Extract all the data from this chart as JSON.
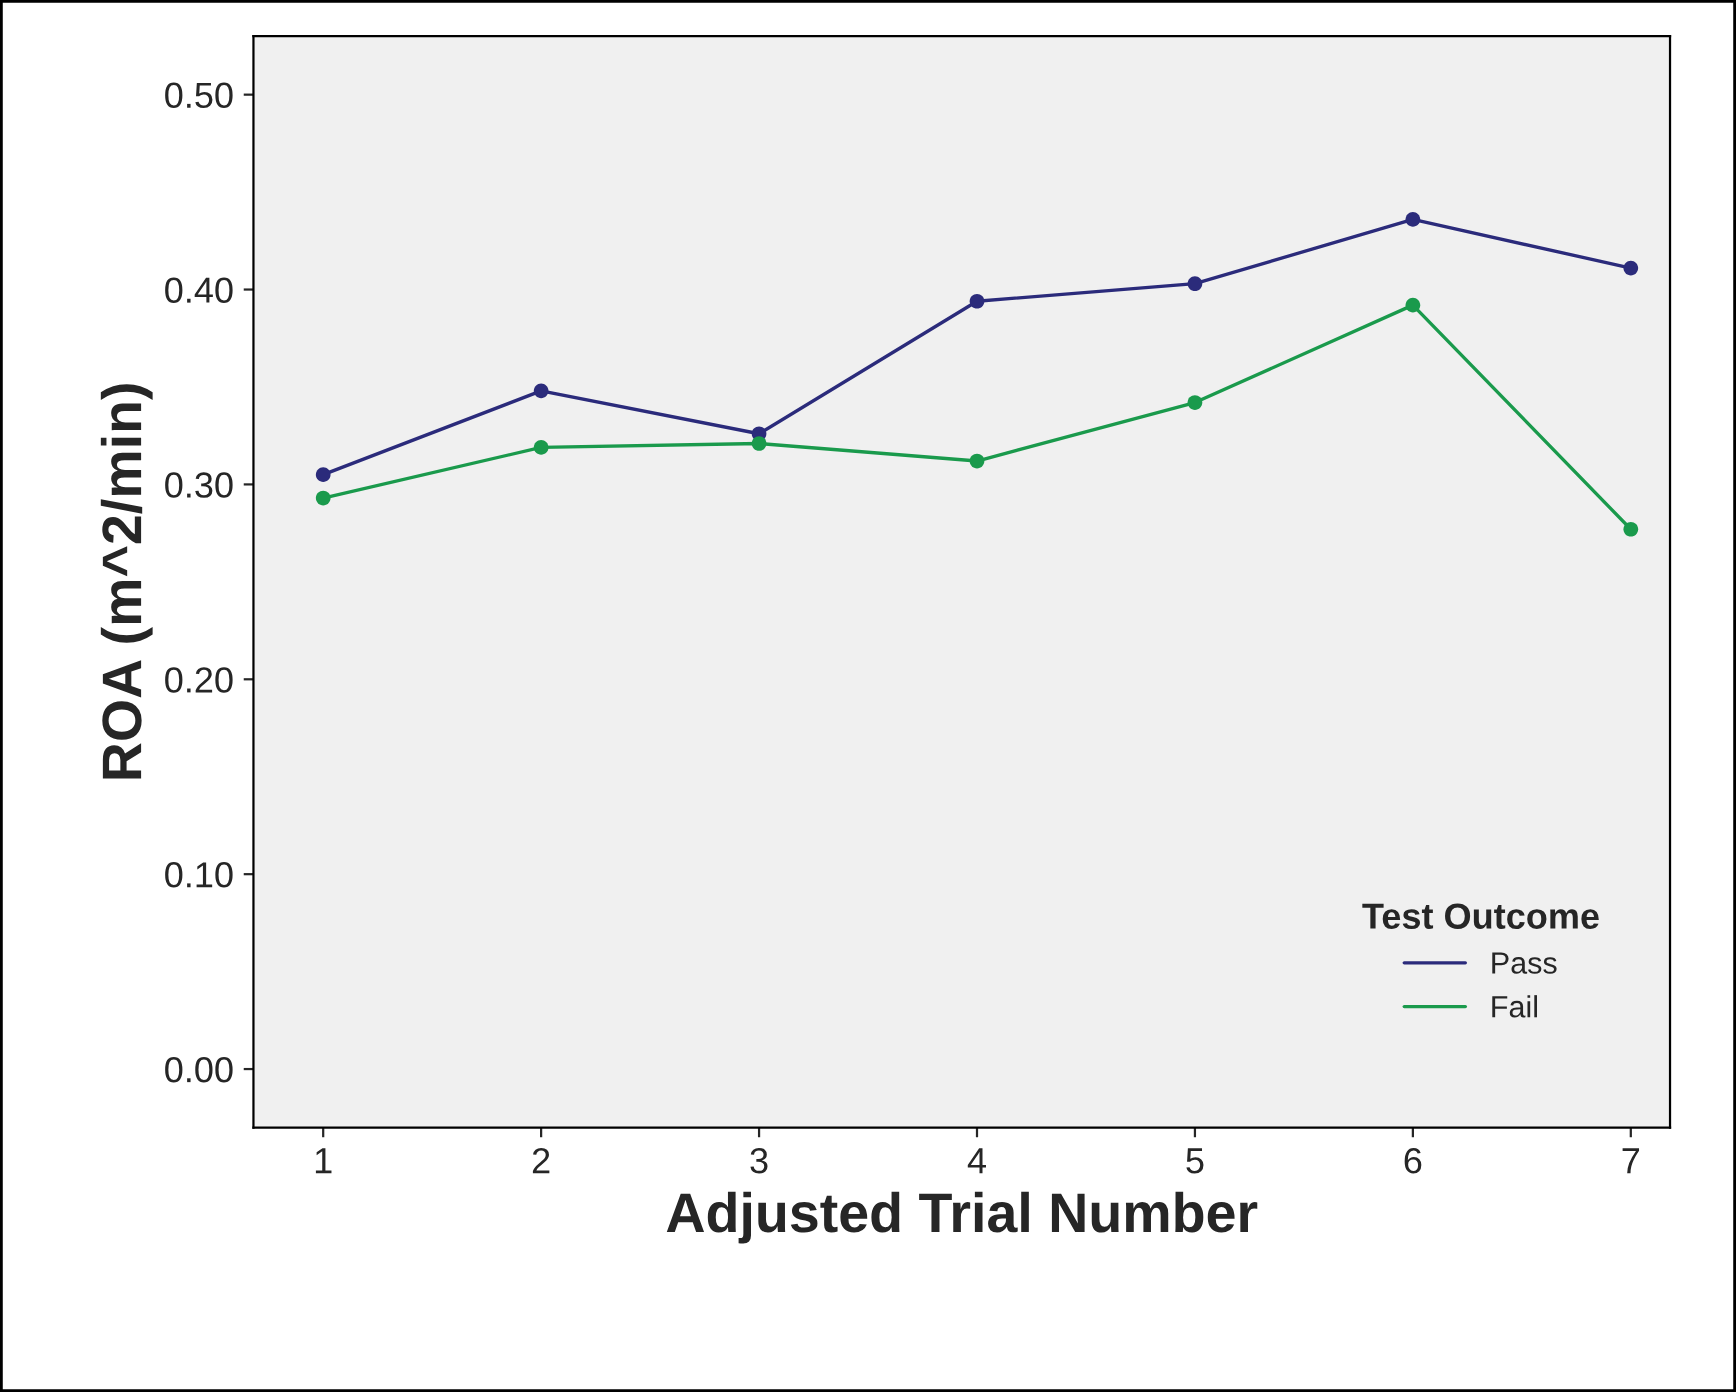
{
  "chart_data": {
    "type": "line",
    "xlabel": "Adjusted Trial Number",
    "ylabel": "ROA (m^2/min)",
    "legend_title": "Test Outcome",
    "x": [
      1,
      2,
      3,
      4,
      5,
      6,
      7
    ],
    "series": [
      {
        "name": "Pass",
        "color": "#2b2b7b",
        "values": [
          0.305,
          0.348,
          0.326,
          0.394,
          0.403,
          0.436,
          0.411
        ]
      },
      {
        "name": "Fail",
        "color": "#1a9a4c",
        "values": [
          0.293,
          0.319,
          0.321,
          0.312,
          0.342,
          0.392,
          0.277
        ]
      }
    ],
    "xlim": [
      0.68,
      7.18
    ],
    "xticks": [
      1,
      2,
      3,
      4,
      5,
      6,
      7
    ],
    "ylim": [
      -0.03,
      0.53
    ],
    "yticks": [
      {
        "value": 0,
        "label": "0.00"
      },
      {
        "value": 0.1,
        "label": "0.10"
      },
      {
        "value": 0.2,
        "label": "0.20"
      },
      {
        "value": 0.3,
        "label": "0.30"
      },
      {
        "value": 0.4,
        "label": "0.40"
      },
      {
        "value": 0.5,
        "label": "0.50"
      }
    ],
    "grid": false,
    "legend": "bottom right",
    "marker": "circle",
    "line_style": "solid"
  }
}
